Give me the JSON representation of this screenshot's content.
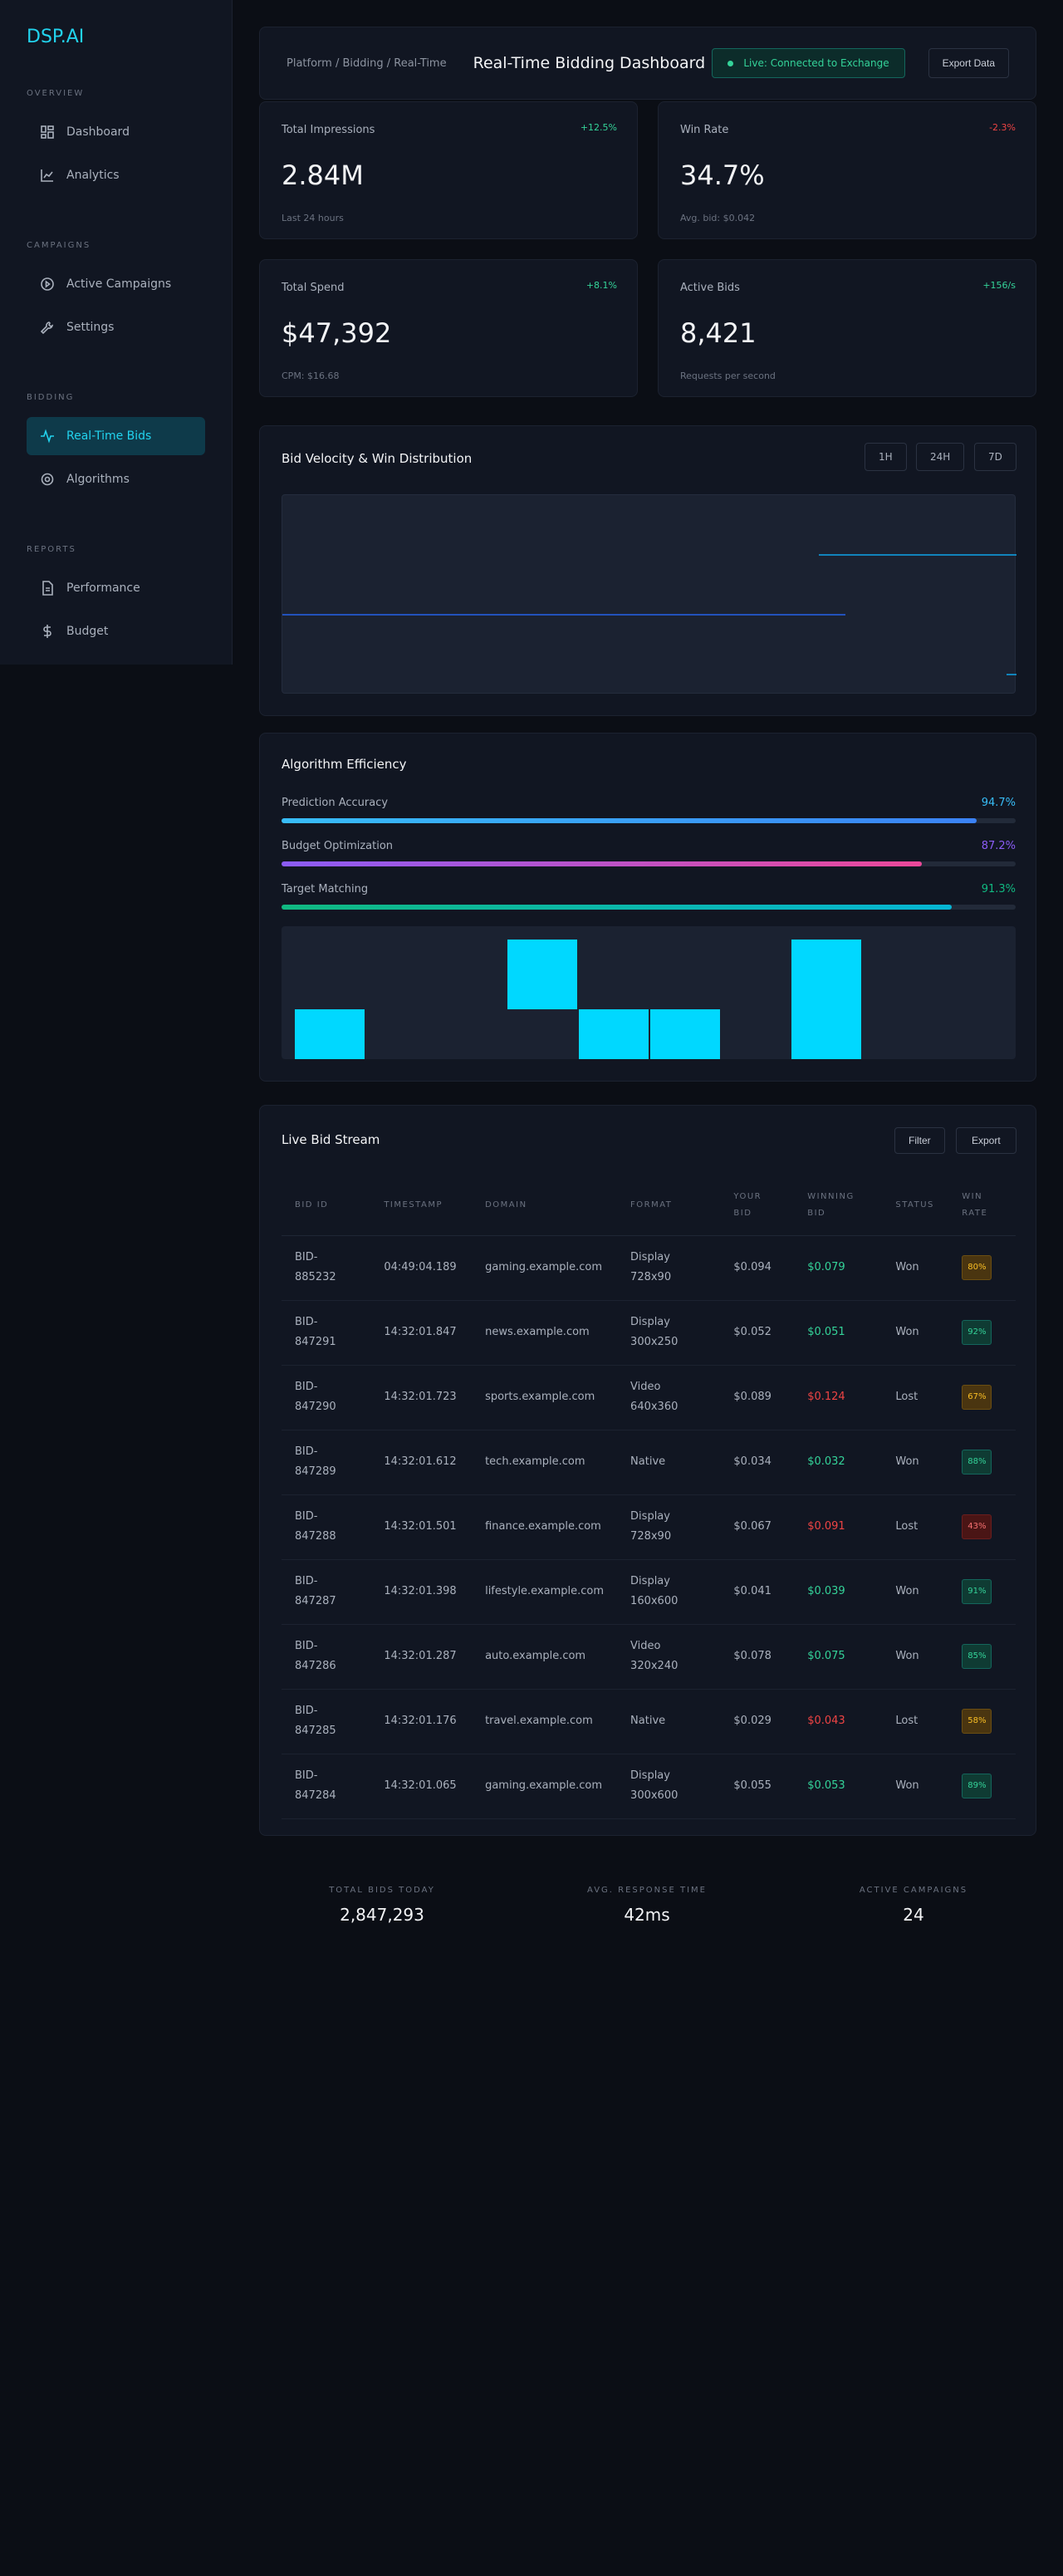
{
  "sidebar": {
    "logo": "DSP.AI",
    "sections": [
      {
        "title": "Overview",
        "items": [
          {
            "label": "Dashboard"
          },
          {
            "label": "Analytics"
          }
        ]
      },
      {
        "title": "Campaigns",
        "items": [
          {
            "label": "Active Campaigns"
          },
          {
            "label": "Settings"
          }
        ]
      },
      {
        "title": "Bidding",
        "items": [
          {
            "label": "Real-Time Bids"
          },
          {
            "label": "Algorithms"
          }
        ]
      },
      {
        "title": "Reports",
        "items": [
          {
            "label": "Performance"
          },
          {
            "label": "Budget"
          }
        ]
      }
    ]
  },
  "header": {
    "breadcrumb": "Platform / Bidding / Real-Time",
    "title": "Real-Time Bidding Dashboard",
    "status": "Live: Connected to Exchange",
    "export_label": "Export Data"
  },
  "metrics": [
    {
      "label": "Total Impressions",
      "change": "+12.5%",
      "value": "2.84M",
      "sub": "Last 24 hours"
    },
    {
      "label": "Win Rate",
      "change": "-2.3%",
      "value": "34.7%",
      "sub": "Avg. bid: $0.042"
    },
    {
      "label": "Total Spend",
      "change": "+8.1%",
      "value": "$47,392",
      "sub": "CPM: $16.68"
    },
    {
      "label": "Active Bids",
      "change": "+156/s",
      "value": "8,421",
      "sub": "Requests per second"
    }
  ],
  "colors": {
    "positive": "#34d399",
    "negative": "#ef4444",
    "accent": "#22d3ee"
  },
  "velocity": {
    "title": "Bid Velocity & Win Distribution",
    "ranges": [
      "1H",
      "24H",
      "7D"
    ]
  },
  "efficiency": {
    "title": "Algorithm Efficiency",
    "bars": [
      {
        "label": "Prediction Accuracy",
        "value": "94.7%",
        "fraction": 0.947,
        "color": "#38bdf8",
        "color2": "#3b82f6"
      },
      {
        "label": "Budget Optimization",
        "value": "87.2%",
        "fraction": 0.872,
        "color": "#8b5cf6",
        "color2": "#ec4899"
      },
      {
        "label": "Target Matching",
        "value": "91.3%",
        "fraction": 0.913,
        "color": "#10b981",
        "color2": "#06b6d4"
      }
    ]
  },
  "stream": {
    "title": "Live Bid Stream",
    "filter_label": "Filter",
    "export_label": "Export",
    "columns": [
      "Bid ID",
      "Timestamp",
      "Domain",
      "Format",
      "Your Bid",
      "Winning Bid",
      "Status",
      "Win Rate"
    ],
    "rows": [
      {
        "id": "BID-885232",
        "ts": "04:49:04.189",
        "domain": "gaming.example.com",
        "format": "Display 728x90",
        "bid": "$0.094",
        "win": "$0.079",
        "status": "Won",
        "rate": "80%",
        "lost": false,
        "tier": "mid"
      },
      {
        "id": "BID-847291",
        "ts": "14:32:01.847",
        "domain": "news.example.com",
        "format": "Display 300x250",
        "bid": "$0.052",
        "win": "$0.051",
        "status": "Won",
        "rate": "92%",
        "lost": false,
        "tier": "hi"
      },
      {
        "id": "BID-847290",
        "ts": "14:32:01.723",
        "domain": "sports.example.com",
        "format": "Video 640x360",
        "bid": "$0.089",
        "win": "$0.124",
        "status": "Lost",
        "rate": "67%",
        "lost": true,
        "tier": "mid"
      },
      {
        "id": "BID-847289",
        "ts": "14:32:01.612",
        "domain": "tech.example.com",
        "format": "Native",
        "bid": "$0.034",
        "win": "$0.032",
        "status": "Won",
        "rate": "88%",
        "lost": false,
        "tier": "hi"
      },
      {
        "id": "BID-847288",
        "ts": "14:32:01.501",
        "domain": "finance.example.com",
        "format": "Display 728x90",
        "bid": "$0.067",
        "win": "$0.091",
        "status": "Lost",
        "rate": "43%",
        "lost": true,
        "tier": "lo"
      },
      {
        "id": "BID-847287",
        "ts": "14:32:01.398",
        "domain": "lifestyle.example.com",
        "format": "Display 160x600",
        "bid": "$0.041",
        "win": "$0.039",
        "status": "Won",
        "rate": "91%",
        "lost": false,
        "tier": "hi"
      },
      {
        "id": "BID-847286",
        "ts": "14:32:01.287",
        "domain": "auto.example.com",
        "format": "Video 320x240",
        "bid": "$0.078",
        "win": "$0.075",
        "status": "Won",
        "rate": "85%",
        "lost": false,
        "tier": "hi"
      },
      {
        "id": "BID-847285",
        "ts": "14:32:01.176",
        "domain": "travel.example.com",
        "format": "Native",
        "bid": "$0.029",
        "win": "$0.043",
        "status": "Lost",
        "rate": "58%",
        "lost": true,
        "tier": "mid"
      },
      {
        "id": "BID-847284",
        "ts": "14:32:01.065",
        "domain": "gaming.example.com",
        "format": "Display 300x600",
        "bid": "$0.055",
        "win": "$0.053",
        "status": "Won",
        "rate": "89%",
        "lost": false,
        "tier": "hi"
      }
    ]
  },
  "footer": [
    {
      "label": "Total Bids Today",
      "value": "2,847,293"
    },
    {
      "label": "Avg. Response Time",
      "value": "42ms"
    },
    {
      "label": "Active Campaigns",
      "value": "24"
    }
  ]
}
